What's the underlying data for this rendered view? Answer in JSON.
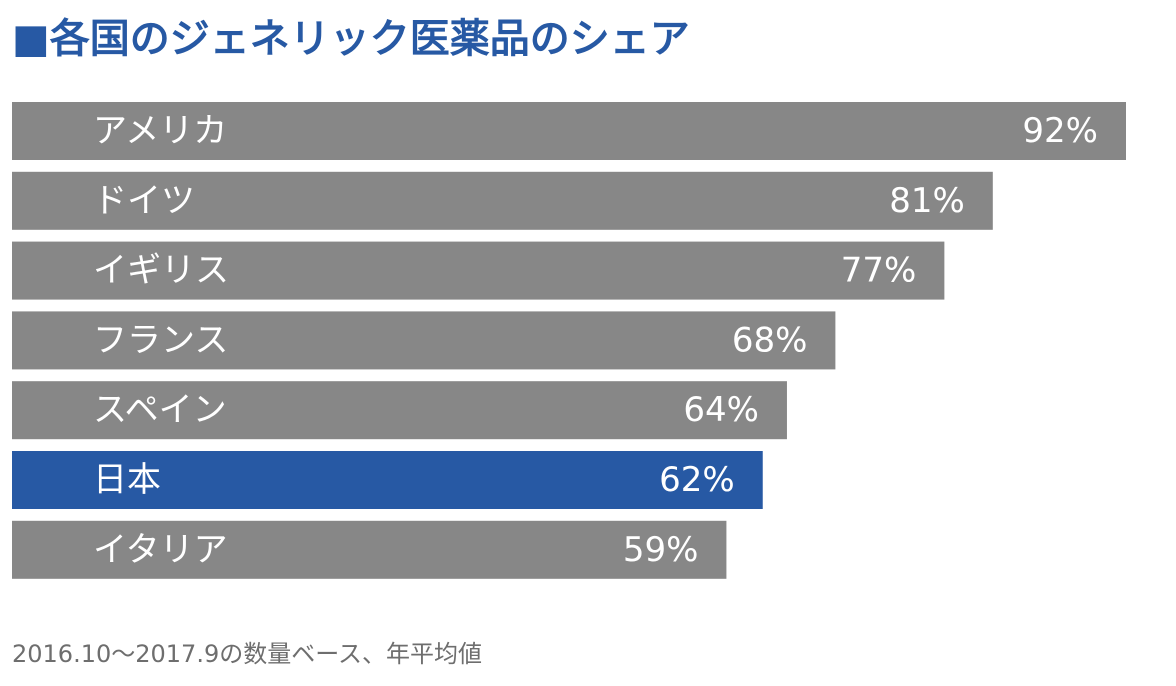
{
  "chart_data": {
    "type": "bar",
    "orientation": "horizontal",
    "title": "■各国のジェネリック医薬品のシェア",
    "categories": [
      "アメリカ",
      "ドイツ",
      "イギリス",
      "フランス",
      "スペイン",
      "日本",
      "イタリア"
    ],
    "values": [
      92,
      81,
      77,
      68,
      64,
      62,
      59
    ],
    "value_labels": [
      "92%",
      "81%",
      "77%",
      "68%",
      "64%",
      "62%",
      "59%"
    ],
    "unit": "%",
    "highlight_category": "日本",
    "colors": {
      "bar": "#878787",
      "highlight": "#2759a4",
      "title": "#2759a4",
      "label": "#ffffff",
      "note": "#6e6e6e"
    },
    "grid": false,
    "legend": "none",
    "note": "2016.10〜2017.9の数量ベース、年平均値"
  }
}
